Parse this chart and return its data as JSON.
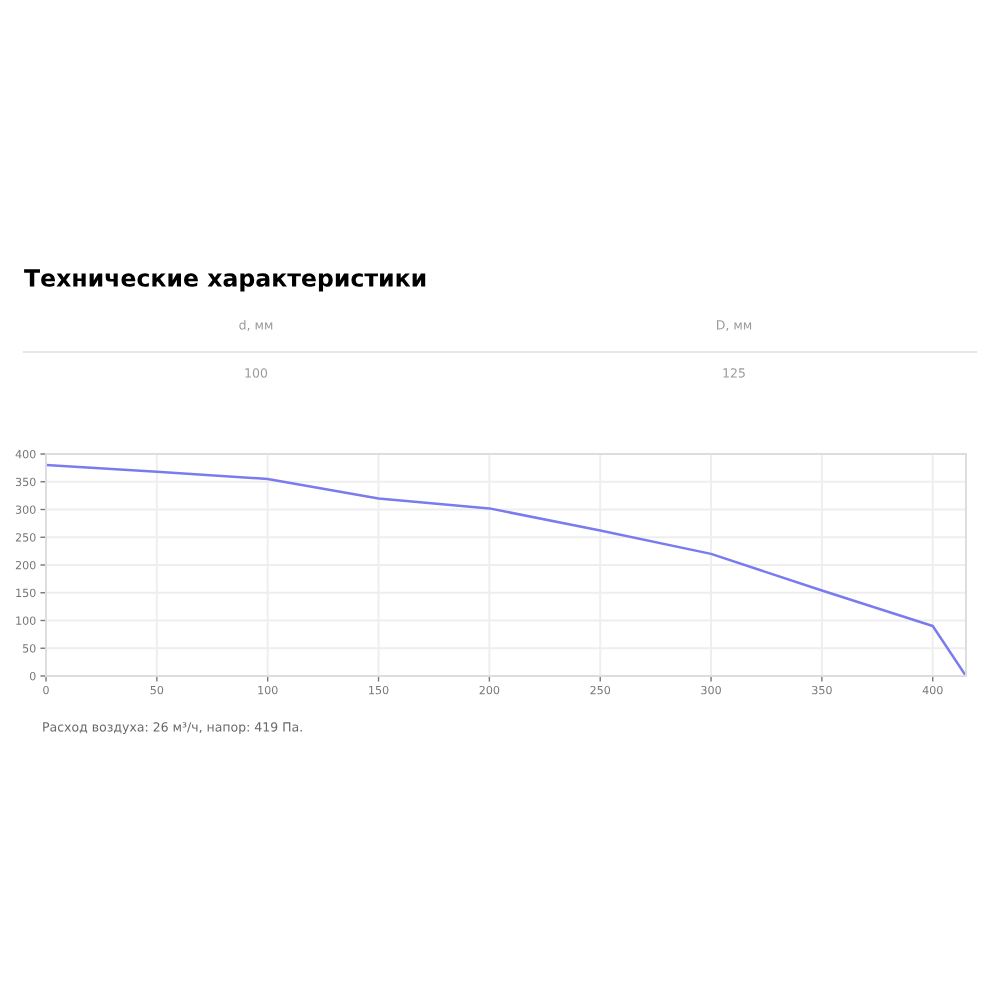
{
  "chart_data": {
    "type": "line",
    "title": "Технические характеристики",
    "annotations": [
      "d, мм",
      "100",
      "D, мм",
      "125",
      "Расход воздуха: 26 м³/ч, напор: 419 Па."
    ],
    "x": [
      0,
      50,
      100,
      150,
      200,
      250,
      300,
      350,
      400,
      415
    ],
    "series": [
      {
        "color": "#7b7bf0",
        "values": [
          380,
          368,
          355,
          320,
          302,
          262,
          220,
          154,
          90,
          0
        ]
      }
    ],
    "xlim": [
      0,
      415
    ],
    "xticks": [
      0,
      50,
      100,
      150,
      200,
      250,
      300,
      350,
      400
    ],
    "ylim": [
      0,
      400
    ],
    "yticks": [
      0,
      50,
      100,
      150,
      200,
      250,
      300,
      350,
      400
    ],
    "grid": true,
    "marker": "none",
    "line_style": "solid"
  }
}
